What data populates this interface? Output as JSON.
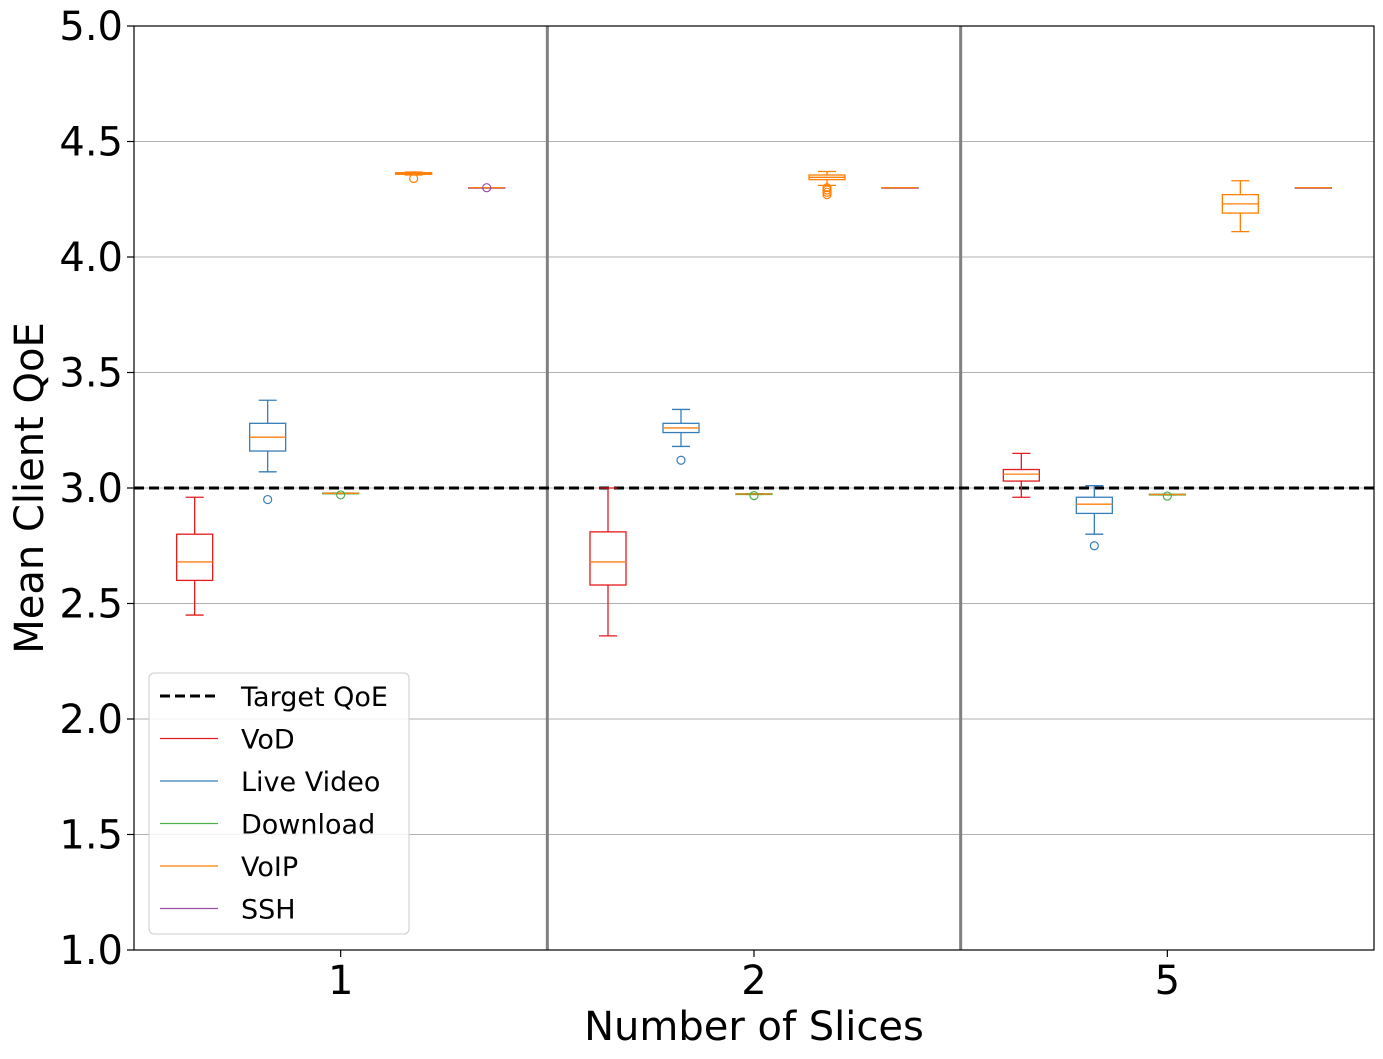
{
  "chart_data": {
    "type": "box",
    "xlabel": "Number of Slices",
    "ylabel": "Mean Client QoE",
    "ylim": [
      1.0,
      5.0
    ],
    "y_ticks": [
      "1.0",
      "1.5",
      "2.0",
      "2.5",
      "3.0",
      "3.5",
      "4.0",
      "4.5",
      "5.0"
    ],
    "categories": [
      "1",
      "2",
      "5"
    ],
    "grid": "horizontal",
    "legend_position": "lower-left",
    "target_line": {
      "name": "Target QoE",
      "value": 3.0,
      "style": "dashed",
      "color": "#000000"
    },
    "series": [
      {
        "name": "VoD",
        "color": "#e41a1c",
        "boxes": [
          {
            "category": "1",
            "whislo": 2.45,
            "q1": 2.6,
            "med": 2.68,
            "q3": 2.8,
            "whishi": 2.96,
            "fliers": []
          },
          {
            "category": "2",
            "whislo": 2.36,
            "q1": 2.58,
            "med": 2.68,
            "q3": 2.81,
            "whishi": 3.0,
            "fliers": []
          },
          {
            "category": "5",
            "whislo": 2.96,
            "q1": 3.03,
            "med": 3.06,
            "q3": 3.08,
            "whishi": 3.15,
            "fliers": []
          }
        ]
      },
      {
        "name": "Live Video",
        "color": "#377eb8",
        "boxes": [
          {
            "category": "1",
            "whislo": 3.07,
            "q1": 3.16,
            "med": 3.22,
            "q3": 3.28,
            "whishi": 3.38,
            "fliers": [
              2.95
            ]
          },
          {
            "category": "2",
            "whislo": 3.18,
            "q1": 3.24,
            "med": 3.26,
            "q3": 3.28,
            "whishi": 3.34,
            "fliers": [
              3.12
            ]
          },
          {
            "category": "5",
            "whislo": 2.8,
            "q1": 2.89,
            "med": 2.93,
            "q3": 2.96,
            "whishi": 3.01,
            "fliers": [
              2.75
            ]
          }
        ]
      },
      {
        "name": "Download",
        "color": "#4daf4a",
        "boxes": [
          {
            "category": "1",
            "whislo": 2.975,
            "q1": 2.975,
            "med": 2.977,
            "q3": 2.978,
            "whishi": 2.978,
            "fliers": [
              2.97
            ]
          },
          {
            "category": "2",
            "whislo": 2.972,
            "q1": 2.972,
            "med": 2.974,
            "q3": 2.975,
            "whishi": 2.975,
            "fliers": [
              2.967
            ]
          },
          {
            "category": "5",
            "whislo": 2.97,
            "q1": 2.97,
            "med": 2.972,
            "q3": 2.973,
            "whishi": 2.973,
            "fliers": [
              2.965
            ]
          }
        ]
      },
      {
        "name": "VoIP",
        "color": "#ff7f00",
        "boxes": [
          {
            "category": "1",
            "whislo": 4.355,
            "q1": 4.358,
            "med": 4.362,
            "q3": 4.365,
            "whishi": 4.368,
            "fliers": [
              4.34
            ]
          },
          {
            "category": "2",
            "whislo": 4.31,
            "q1": 4.335,
            "med": 4.345,
            "q3": 4.355,
            "whishi": 4.37,
            "fliers": [
              4.3,
              4.29,
              4.28,
              4.27
            ]
          },
          {
            "category": "5",
            "whislo": 4.11,
            "q1": 4.19,
            "med": 4.23,
            "q3": 4.27,
            "whishi": 4.33,
            "fliers": []
          }
        ]
      },
      {
        "name": "SSH",
        "color": "#984ea3",
        "boxes": [
          {
            "category": "1",
            "whislo": 4.3,
            "q1": 4.3,
            "med": 4.3,
            "q3": 4.3,
            "whishi": 4.3,
            "fliers": [
              4.3
            ]
          },
          {
            "category": "2",
            "whislo": 4.3,
            "q1": 4.3,
            "med": 4.3,
            "q3": 4.3,
            "whishi": 4.3,
            "fliers": []
          },
          {
            "category": "5",
            "whislo": 4.3,
            "q1": 4.3,
            "med": 4.3,
            "q3": 4.3,
            "whishi": 4.3,
            "fliers": []
          }
        ]
      }
    ],
    "median_color": "#ff7f0e",
    "separator_color": "#808080",
    "grid_color": "#b0b0b0"
  }
}
